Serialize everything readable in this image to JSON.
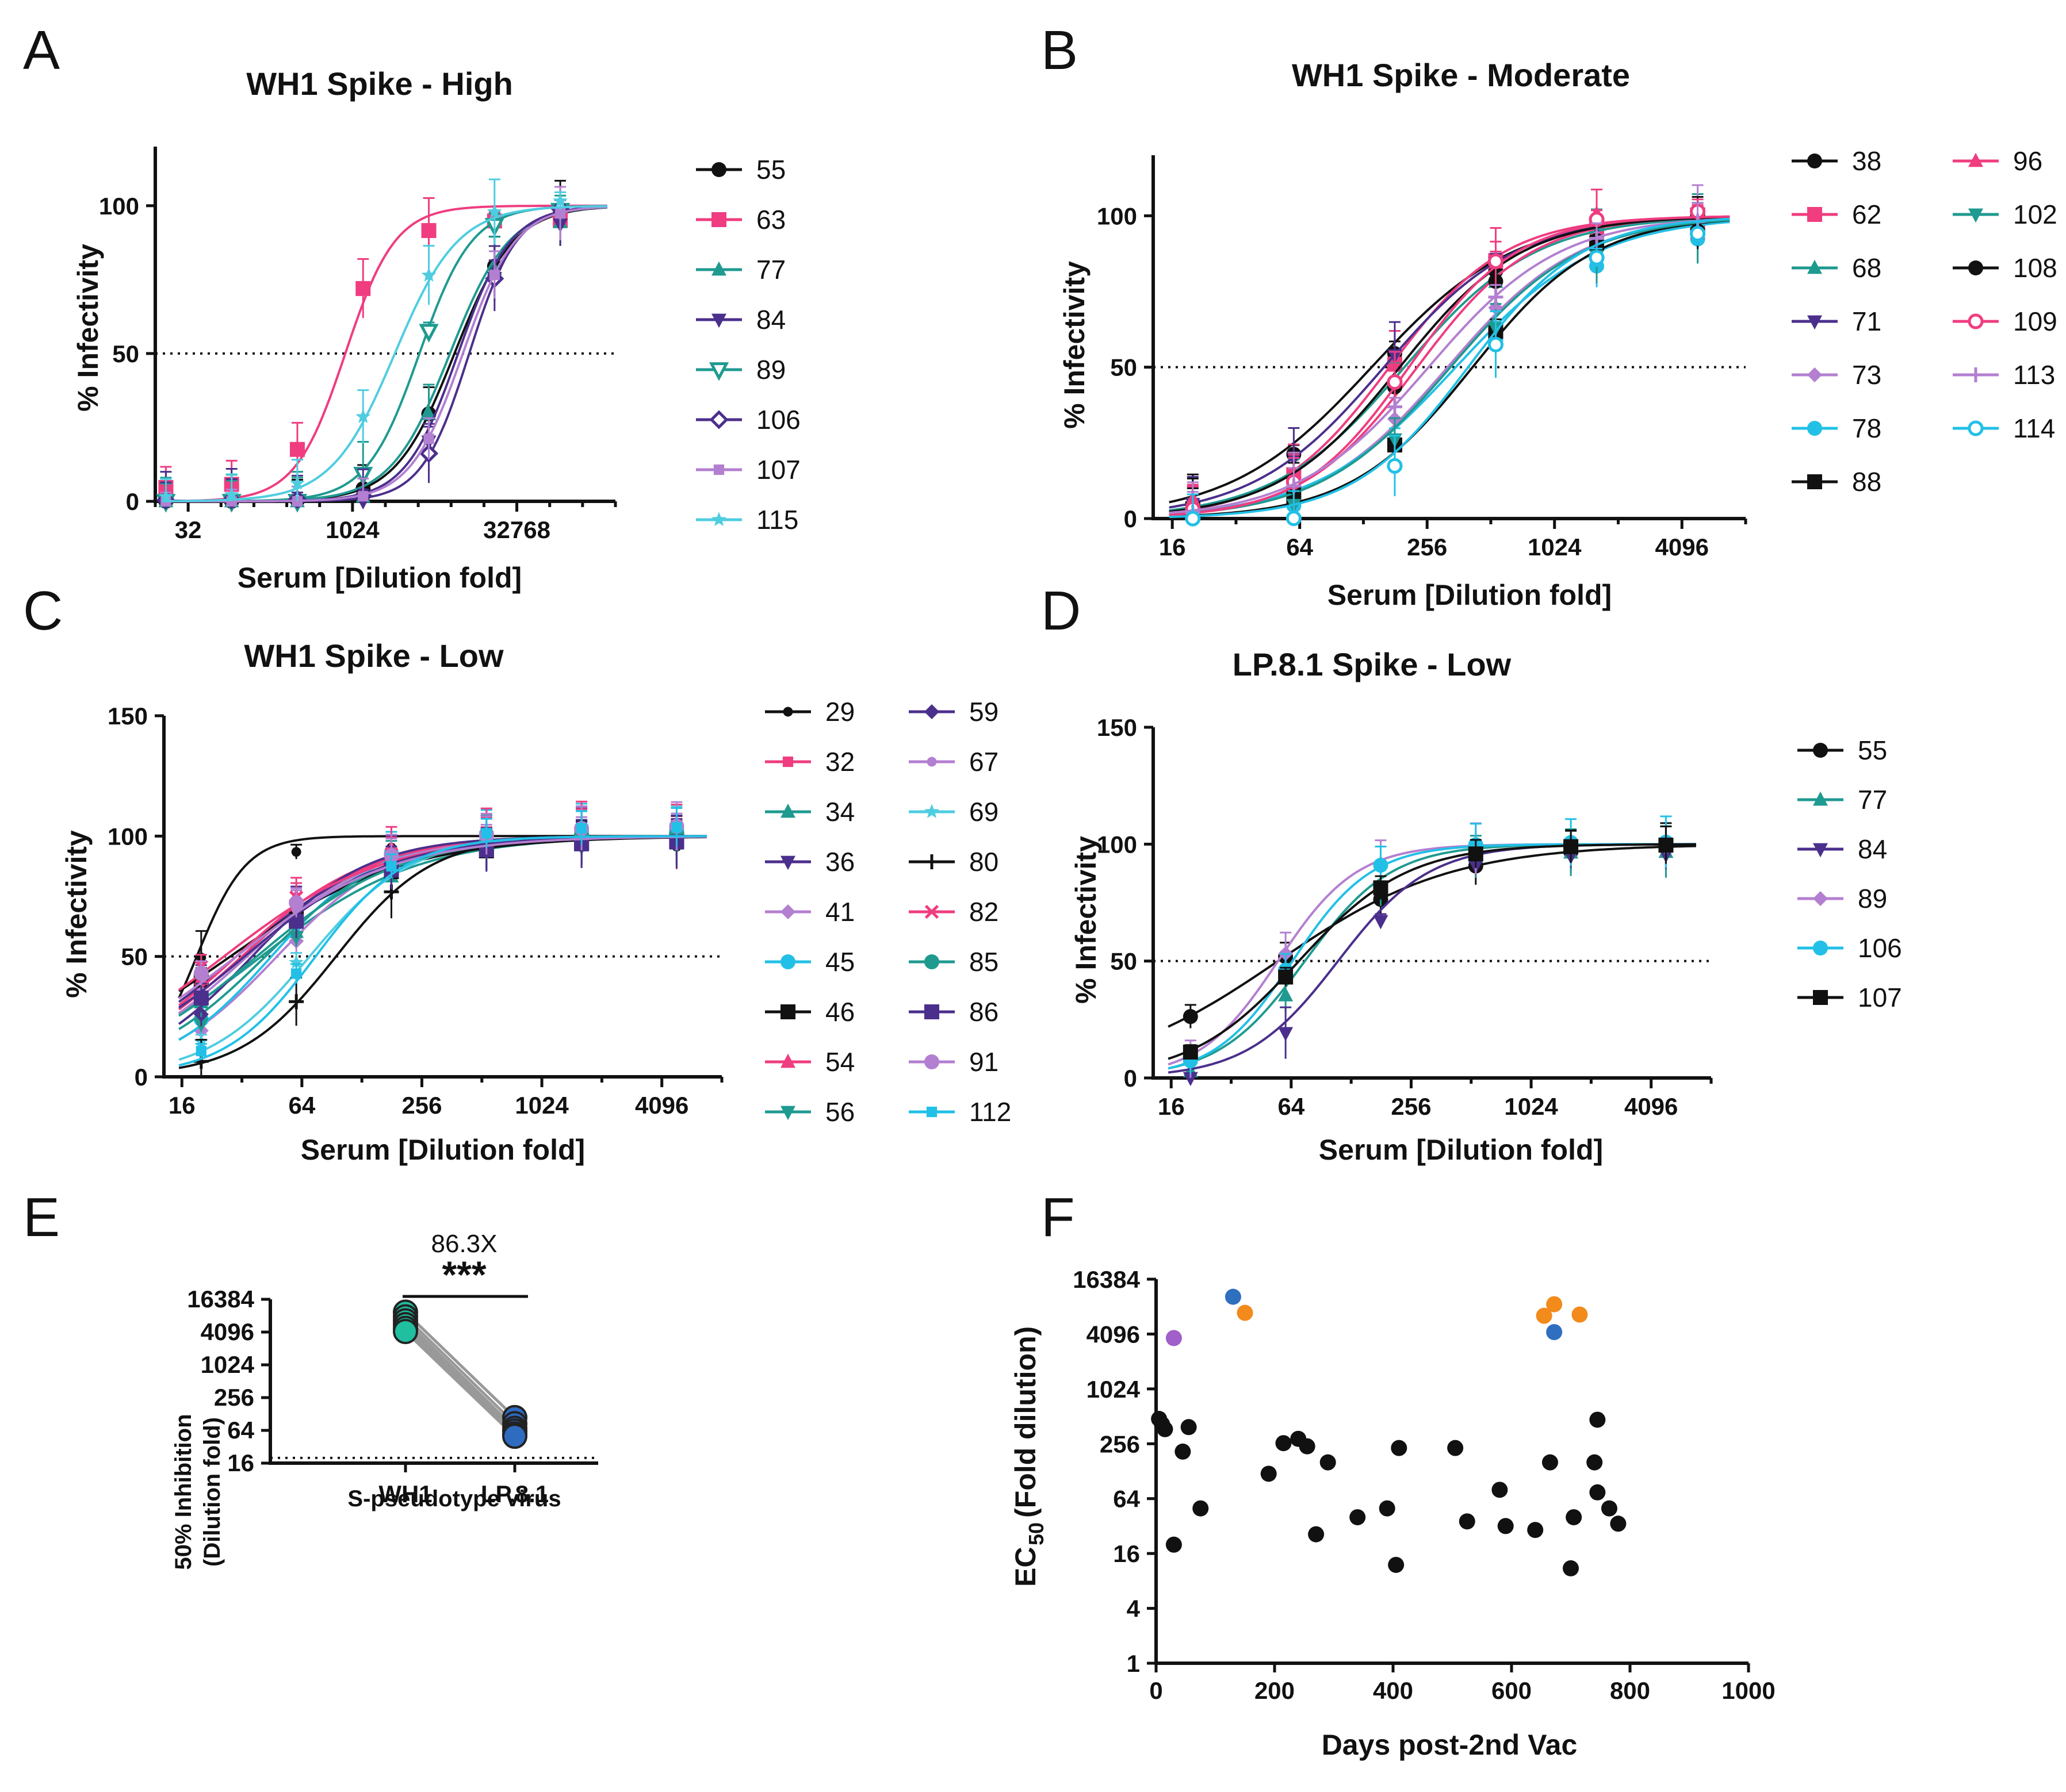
{
  "figure": {
    "panels": [
      "A",
      "B",
      "C",
      "D",
      "E",
      "F"
    ]
  },
  "colors": {
    "black": "#111111",
    "pink": "#ef3d80",
    "teal": "#1f9a90",
    "indigo": "#4b2f8c",
    "lavender": "#b37fd0",
    "cyan": "#22c0e6",
    "lightblue": "#4fcde0",
    "e_wh1": "#1fbf9f",
    "e_lp": "#2f6bbf",
    "orange": "#f28a1c",
    "blue": "#2f6fbf",
    "purple": "#a05fc9"
  },
  "chart_data": [
    {
      "id": "A",
      "type": "line",
      "title": "WH1 Spike - High",
      "xlabel": "Serum [Dilution fold]",
      "ylabel": "% Infectivity",
      "xscale": "log2",
      "xlim": [
        16,
        262144
      ],
      "ylim": [
        0,
        120
      ],
      "xticks": [
        32,
        1024,
        32768
      ],
      "yticks": [
        0,
        50,
        100
      ],
      "reference_line": 50,
      "legend_position": "right",
      "x": [
        20,
        80,
        320,
        1280,
        5120,
        20480,
        81920
      ],
      "series": [
        {
          "name": "55",
          "ec50": 8800,
          "hill": 1.6,
          "marker": "circle",
          "color": "black"
        },
        {
          "name": "63",
          "ec50": 880,
          "hill": 1.9,
          "marker": "square",
          "color": "pink"
        },
        {
          "name": "77",
          "ec50": 8000,
          "hill": 1.6,
          "marker": "triangle-up",
          "color": "teal"
        },
        {
          "name": "84",
          "ec50": 9500,
          "hill": 1.8,
          "marker": "triangle-down",
          "color": "indigo"
        },
        {
          "name": "89",
          "ec50": 4200,
          "hill": 1.8,
          "marker": "triangle-down-open",
          "color": "teal"
        },
        {
          "name": "106",
          "ec50": 12000,
          "hill": 2.0,
          "marker": "diamond-open",
          "color": "indigo"
        },
        {
          "name": "107",
          "ec50": 10500,
          "hill": 1.8,
          "marker": "square-small",
          "color": "lavender"
        },
        {
          "name": "115",
          "ec50": 2500,
          "hill": 1.5,
          "marker": "star",
          "color": "lightblue"
        }
      ]
    },
    {
      "id": "B",
      "type": "line",
      "title": "WH1 Spike - Moderate",
      "xlabel": "Serum [Dilution fold]",
      "ylabel": "% Infectivity",
      "xscale": "log2",
      "xlim": [
        13,
        8192
      ],
      "ylim": [
        0,
        120
      ],
      "xticks": [
        16,
        64,
        256,
        1024,
        4096
      ],
      "yticks": [
        0,
        50,
        100
      ],
      "reference_line": 50,
      "legend_position": "right",
      "x": [
        20,
        60,
        180,
        540,
        1620,
        4860
      ],
      "series": [
        {
          "name": "38",
          "ec50": 140,
          "hill": 1.3,
          "marker": "circle",
          "color": "black"
        },
        {
          "name": "62",
          "ec50": 170,
          "hill": 1.6,
          "marker": "square",
          "color": "pink"
        },
        {
          "name": "68",
          "ec50": 200,
          "hill": 1.4,
          "marker": "triangle-up",
          "color": "teal"
        },
        {
          "name": "71",
          "ec50": 160,
          "hill": 1.4,
          "marker": "triangle-down",
          "color": "indigo"
        },
        {
          "name": "73",
          "ec50": 320,
          "hill": 1.4,
          "marker": "diamond",
          "color": "lavender"
        },
        {
          "name": "78",
          "ec50": 350,
          "hill": 1.3,
          "marker": "circle",
          "color": "cyan"
        },
        {
          "name": "88",
          "ec50": 420,
          "hill": 1.5,
          "marker": "square",
          "color": "black"
        },
        {
          "name": "96",
          "ec50": 230,
          "hill": 1.6,
          "marker": "triangle-up",
          "color": "pink"
        },
        {
          "name": "102",
          "ec50": 330,
          "hill": 1.4,
          "marker": "triangle-down",
          "color": "teal"
        },
        {
          "name": "108",
          "ec50": 190,
          "hill": 1.5,
          "marker": "circle",
          "color": "black"
        },
        {
          "name": "109",
          "ec50": 210,
          "hill": 1.7,
          "marker": "circle-open",
          "color": "pink"
        },
        {
          "name": "113",
          "ec50": 260,
          "hill": 1.4,
          "marker": "plus",
          "color": "lavender"
        },
        {
          "name": "114",
          "ec50": 400,
          "hill": 1.6,
          "marker": "circle-open",
          "color": "cyan"
        }
      ]
    },
    {
      "id": "C",
      "type": "line",
      "title": "WH1 Spike - Low",
      "xlabel": "Serum [Dilution fold]",
      "ylabel": "% Infectivity",
      "xscale": "log2",
      "xlim": [
        13,
        8192
      ],
      "ylim": [
        0,
        150
      ],
      "xticks": [
        16,
        64,
        256,
        1024,
        4096
      ],
      "yticks": [
        0,
        50,
        100,
        150
      ],
      "reference_line": 50,
      "legend_position": "right",
      "x": [
        20,
        60,
        180,
        540,
        1620,
        4860
      ],
      "series": [
        {
          "name": "29",
          "ec50": 19,
          "hill": 3.5,
          "marker": "circle-small",
          "color": "black"
        },
        {
          "name": "32",
          "ec50": 32,
          "hill": 1.3,
          "marker": "square-small",
          "color": "pink"
        },
        {
          "name": "34",
          "ec50": 40,
          "hill": 1.1,
          "marker": "triangle-up",
          "color": "teal"
        },
        {
          "name": "36",
          "ec50": 30,
          "hill": 1.2,
          "marker": "triangle-down",
          "color": "indigo"
        },
        {
          "name": "41",
          "ec50": 48,
          "hill": 1.5,
          "marker": "diamond",
          "color": "lavender"
        },
        {
          "name": "45",
          "ec50": 45,
          "hill": 1.6,
          "marker": "circle",
          "color": "cyan"
        },
        {
          "name": "46",
          "ec50": 28,
          "hill": 1.0,
          "marker": "square",
          "color": "black"
        },
        {
          "name": "54",
          "ec50": 30,
          "hill": 1.3,
          "marker": "triangle-up",
          "color": "pink"
        },
        {
          "name": "56",
          "ec50": 42,
          "hill": 1.4,
          "marker": "triangle-down",
          "color": "teal"
        },
        {
          "name": "59",
          "ec50": 36,
          "hill": 1.5,
          "marker": "diamond",
          "color": "indigo"
        },
        {
          "name": "67",
          "ec50": 34,
          "hill": 1.3,
          "marker": "circle-small",
          "color": "lavender"
        },
        {
          "name": "69",
          "ec50": 70,
          "hill": 1.7,
          "marker": "star",
          "color": "lightblue"
        },
        {
          "name": "80",
          "ec50": 95,
          "hill": 1.8,
          "marker": "plus",
          "color": "black"
        },
        {
          "name": "82",
          "ec50": 26,
          "hill": 1.1,
          "marker": "x",
          "color": "pink"
        },
        {
          "name": "85",
          "ec50": 38,
          "hill": 1.2,
          "marker": "circle",
          "color": "teal"
        },
        {
          "name": "86",
          "ec50": 33,
          "hill": 1.2,
          "marker": "square",
          "color": "indigo"
        },
        {
          "name": "91",
          "ec50": 30,
          "hill": 1.1,
          "marker": "circle",
          "color": "lavender"
        },
        {
          "name": "112",
          "ec50": 75,
          "hill": 1.9,
          "marker": "square-small",
          "color": "cyan"
        }
      ]
    },
    {
      "id": "D",
      "type": "line",
      "title": "LP.8.1 Spike - Low",
      "xlabel": "Serum [Dilution fold]",
      "ylabel": "% Infectivity",
      "xscale": "log2",
      "xlim": [
        13,
        8192
      ],
      "ylim": [
        0,
        150
      ],
      "xticks": [
        16,
        64,
        256,
        1024,
        4096
      ],
      "yticks": [
        0,
        50,
        100,
        150
      ],
      "reference_line": 50,
      "legend_position": "right",
      "x": [
        20,
        60,
        180,
        540,
        1620,
        4860
      ],
      "series": [
        {
          "name": "55",
          "ec50": 55,
          "hill": 1.0,
          "marker": "circle",
          "color": "black"
        },
        {
          "name": "77",
          "ec50": 75,
          "hill": 2.0,
          "marker": "triangle-up",
          "color": "teal"
        },
        {
          "name": "84",
          "ec50": 110,
          "hill": 1.9,
          "marker": "triangle-down",
          "color": "indigo"
        },
        {
          "name": "89",
          "ec50": 55,
          "hill": 2.2,
          "marker": "diamond",
          "color": "lavender"
        },
        {
          "name": "106",
          "ec50": 65,
          "hill": 2.2,
          "marker": "circle",
          "color": "cyan"
        },
        {
          "name": "107",
          "ec50": 70,
          "hill": 1.6,
          "marker": "square",
          "color": "black"
        }
      ]
    },
    {
      "id": "E",
      "type": "scatter",
      "title": "",
      "xlabel": "S-pseudotype virus",
      "ylabel": "50% Inhibition",
      "ylabel2": "(Dilution fold)",
      "yscale": "log2",
      "ylim": [
        16,
        16384
      ],
      "yticks": [
        16,
        64,
        256,
        1024,
        4096,
        16384
      ],
      "categories": [
        "WH1",
        "LP.8.1"
      ],
      "reference_line": 20,
      "annotation": "86.3X",
      "significance": "***",
      "pairs": [
        [
          9500,
          110
        ],
        [
          7800,
          85
        ],
        [
          6600,
          70
        ],
        [
          5600,
          62
        ],
        [
          4800,
          55
        ],
        [
          4200,
          50
        ]
      ]
    },
    {
      "id": "F",
      "type": "scatter",
      "title": "",
      "xlabel": "Days post-2nd Vac",
      "ylabel": "EC",
      "ylabel_sub": "50",
      "ylabel_rest": "(Fold dilution)",
      "yscale": "log2",
      "xlim": [
        0,
        1000
      ],
      "ylim": [
        1,
        16384
      ],
      "xticks": [
        0,
        200,
        400,
        600,
        800,
        1000
      ],
      "yticks": [
        1,
        4,
        16,
        64,
        256,
        1024,
        4096,
        16384
      ],
      "points": [
        {
          "x": 5,
          "y": 480,
          "c": "black"
        },
        {
          "x": 10,
          "y": 420,
          "c": "black"
        },
        {
          "x": 15,
          "y": 370,
          "c": "black"
        },
        {
          "x": 30,
          "y": 20,
          "c": "black"
        },
        {
          "x": 45,
          "y": 210,
          "c": "black"
        },
        {
          "x": 55,
          "y": 390,
          "c": "black"
        },
        {
          "x": 75,
          "y": 50,
          "c": "black"
        },
        {
          "x": 190,
          "y": 120,
          "c": "black"
        },
        {
          "x": 215,
          "y": 260,
          "c": "black"
        },
        {
          "x": 240,
          "y": 290,
          "c": "black"
        },
        {
          "x": 255,
          "y": 240,
          "c": "black"
        },
        {
          "x": 270,
          "y": 26,
          "c": "black"
        },
        {
          "x": 290,
          "y": 160,
          "c": "black"
        },
        {
          "x": 340,
          "y": 40,
          "c": "black"
        },
        {
          "x": 390,
          "y": 50,
          "c": "black"
        },
        {
          "x": 405,
          "y": 12,
          "c": "black"
        },
        {
          "x": 410,
          "y": 230,
          "c": "black"
        },
        {
          "x": 505,
          "y": 230,
          "c": "black"
        },
        {
          "x": 525,
          "y": 36,
          "c": "black"
        },
        {
          "x": 580,
          "y": 80,
          "c": "black"
        },
        {
          "x": 590,
          "y": 32,
          "c": "black"
        },
        {
          "x": 640,
          "y": 29,
          "c": "black"
        },
        {
          "x": 665,
          "y": 160,
          "c": "black"
        },
        {
          "x": 700,
          "y": 11,
          "c": "black"
        },
        {
          "x": 705,
          "y": 40,
          "c": "black"
        },
        {
          "x": 740,
          "y": 160,
          "c": "black"
        },
        {
          "x": 745,
          "y": 75,
          "c": "black"
        },
        {
          "x": 745,
          "y": 470,
          "c": "black"
        },
        {
          "x": 765,
          "y": 50,
          "c": "black"
        },
        {
          "x": 780,
          "y": 34,
          "c": "black"
        },
        {
          "x": 30,
          "y": 3700,
          "c": "purple"
        },
        {
          "x": 130,
          "y": 10500,
          "c": "blue"
        },
        {
          "x": 150,
          "y": 7000,
          "c": "orange"
        },
        {
          "x": 655,
          "y": 6500,
          "c": "orange"
        },
        {
          "x": 672,
          "y": 8700,
          "c": "orange"
        },
        {
          "x": 672,
          "y": 4300,
          "c": "blue"
        },
        {
          "x": 715,
          "y": 6700,
          "c": "orange"
        }
      ]
    }
  ]
}
